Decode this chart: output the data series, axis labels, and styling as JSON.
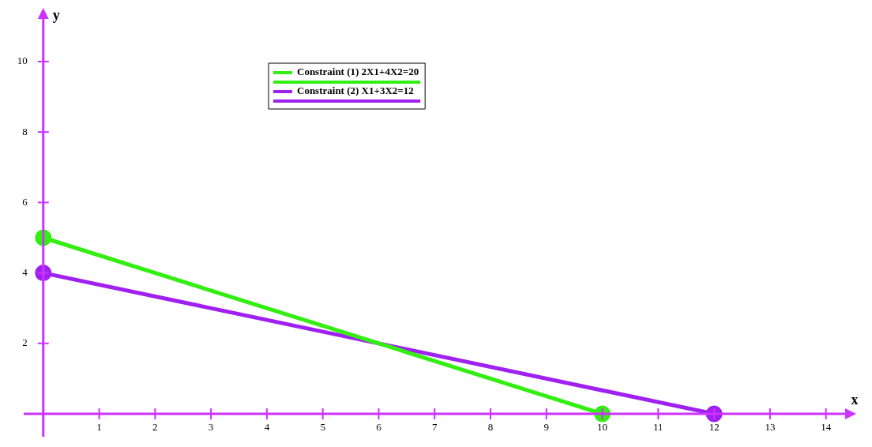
{
  "chart_data": {
    "type": "line",
    "xlabel": "x",
    "ylabel": "y",
    "xlim": [
      -0.35,
      14.4
    ],
    "ylim": [
      -0.65,
      11.3
    ],
    "xticks": [
      1,
      2,
      3,
      4,
      5,
      6,
      7,
      8,
      9,
      10,
      11,
      12,
      13,
      14
    ],
    "yticks": [
      2,
      4,
      6,
      8,
      10
    ],
    "series": [
      {
        "name": "Constraint (1) 2X1+4X2=20",
        "color": "#33ee11",
        "x": [
          0,
          10
        ],
        "values": [
          5,
          0
        ]
      },
      {
        "name": "Constraint (2) X1+3X2=12",
        "color": "#a020f0",
        "x": [
          0,
          12
        ],
        "values": [
          4,
          0
        ]
      }
    ],
    "grid": false,
    "legend": "top left",
    "marker": "circle",
    "line_style": "solid"
  }
}
